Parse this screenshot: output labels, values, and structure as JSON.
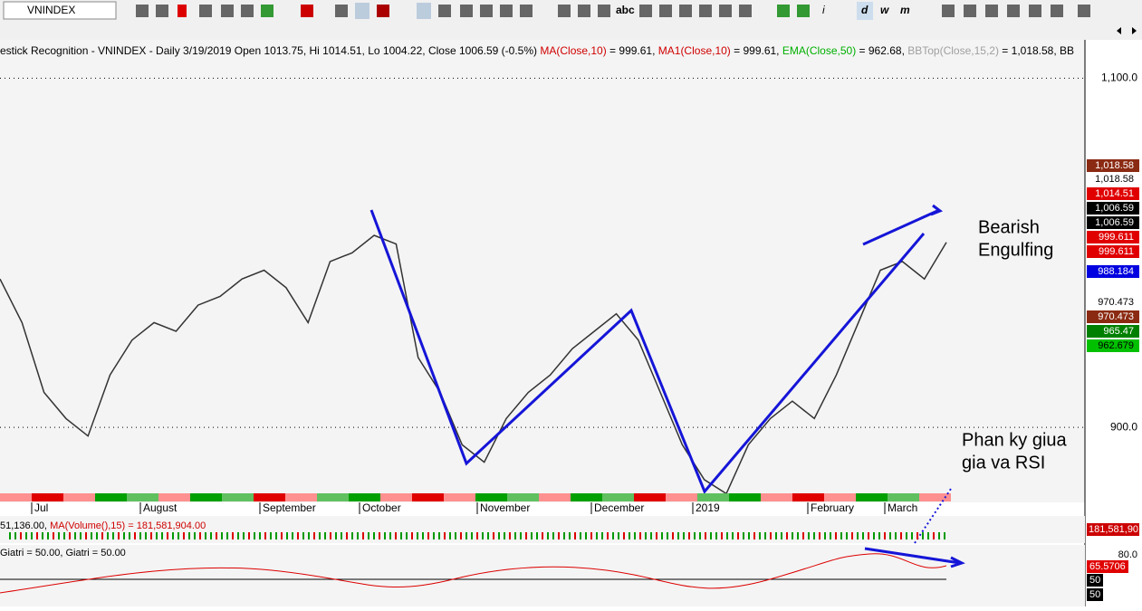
{
  "toolbar": {
    "symbol": "VNINDEX",
    "buttons": [
      "abc",
      "i",
      "d",
      "w",
      "m"
    ]
  },
  "title_segments": [
    {
      "text": "estick Recognition - VNINDEX - Daily 3/19/2019 Open 1013.75, Hi 1014.51, Lo 1004.22, Close 1006.59 (-0.5%) ",
      "color": "#000000"
    },
    {
      "text": "MA(Close,10)",
      "color": "#d00000"
    },
    {
      "text": " = 999.61, ",
      "color": "#000000"
    },
    {
      "text": "MA1(Close,10)",
      "color": "#d00000"
    },
    {
      "text": " = 999.61, ",
      "color": "#000000"
    },
    {
      "text": "EMA(Close,50)",
      "color": "#00b000"
    },
    {
      "text": " = 962.68, ",
      "color": "#000000"
    },
    {
      "text": "BBTop(Close,15,2)",
      "color": "#a0a0a0"
    },
    {
      "text": " = 1,018.58, BB",
      "color": "#000000"
    }
  ],
  "price": {
    "ylim": [
      857,
      1122
    ],
    "yticks": [
      {
        "value": 1100,
        "label": "1,100.0"
      },
      {
        "value": 900,
        "label": "900.0"
      }
    ],
    "color": "#333333",
    "values": [
      985,
      960,
      920,
      905,
      895,
      930,
      950,
      960,
      955,
      970,
      975,
      985,
      990,
      980,
      960,
      995,
      1000,
      1010,
      1005,
      940,
      920,
      890,
      880,
      905,
      920,
      930,
      945,
      955,
      965,
      950,
      920,
      890,
      870,
      862,
      890,
      905,
      915,
      905,
      930,
      960,
      990,
      995,
      985,
      1006
    ]
  },
  "right_labels": [
    {
      "text": "1,018.58",
      "bg": "#8b2a12",
      "fg": "#ffffff"
    },
    {
      "text": "1,018.58",
      "bg": "none",
      "fg": "#000000"
    },
    {
      "text": "1,014.51",
      "bg": "#e00000",
      "fg": "#ffffff"
    },
    {
      "text": "1,006.59",
      "bg": "#000000",
      "fg": "#ffffff"
    },
    {
      "text": "1,006.59",
      "bg": "#000000",
      "fg": "#ffffff"
    },
    {
      "text": "999.611",
      "bg": "#e00000",
      "fg": "#ffffff"
    },
    {
      "text": "999.611",
      "bg": "#e00000",
      "fg": "#ffffff"
    },
    {
      "text": "988.184",
      "bg": "#0000e0",
      "fg": "#ffffff"
    },
    {
      "text": "970.473",
      "bg": "none",
      "fg": "#000000"
    },
    {
      "text": "970.473",
      "bg": "#8b2a12",
      "fg": "#ffffff"
    },
    {
      "text": "965.47",
      "bg": "#008000",
      "fg": "#ffffff"
    },
    {
      "text": "962.679",
      "bg": "#00c000",
      "fg": "#000000"
    }
  ],
  "months": [
    "Jul",
    "August",
    "September",
    "October",
    "November",
    "December",
    "2019",
    "February",
    "March"
  ],
  "annotations": {
    "bearish": [
      "Bearish",
      "Engulfing"
    ],
    "divergence": [
      "Phan ky giua",
      "gia va RSI"
    ]
  },
  "volume_pane": {
    "text_a": "51,136.00, ",
    "text_b": "MA(Volume(),15) = 181,581,904.00",
    "right": "181,581,90"
  },
  "rsi_pane": {
    "text": "Giatri = 50.00, Giatri = 50.00",
    "labels": [
      "80.0",
      "65.5706",
      "50",
      "50"
    ]
  }
}
